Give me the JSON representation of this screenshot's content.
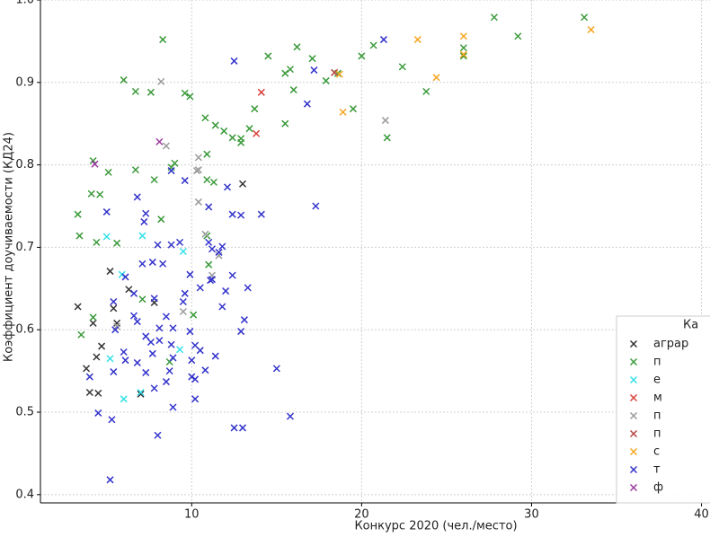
{
  "chart_data": {
    "type": "scatter",
    "xlabel": "Конкурс 2020 (чел./место)",
    "ylabel": "Коэффициент доучиваемости (КД24)",
    "xlim": [
      1.1,
      40.5
    ],
    "ylim": [
      0.39,
      1.0
    ],
    "xticks": [
      10,
      20,
      30,
      40
    ],
    "yticks": [
      0.4,
      0.5,
      0.6,
      0.7,
      0.8,
      0.9,
      {
        "value": 1,
        "label": "1.0"
      }
    ],
    "grid": true,
    "legend_title": "Ка",
    "legend_position": "lower right",
    "series": [
      {
        "name": "аграр",
        "color": "#333333",
        "x": [
          3.3,
          4.2,
          5.2,
          5.4,
          4.7,
          4.4,
          3.8,
          4.0,
          4.5,
          6.3,
          7.0,
          7.8,
          13.0,
          5.6
        ],
        "y": [
          0.628,
          0.608,
          0.671,
          0.626,
          0.58,
          0.567,
          0.553,
          0.524,
          0.523,
          0.649,
          0.522,
          0.633,
          0.777,
          0.608
        ]
      },
      {
        "name": "п",
        "color": "#3a9a3a",
        "x": [
          8.3,
          6.0,
          6.7,
          7.6,
          9.6,
          9.9,
          10.8,
          11.4,
          11.9,
          12.4,
          12.9,
          12.9,
          13.4,
          13.7,
          14.5,
          15.5,
          15.8,
          16.2,
          16.0,
          15.5,
          17.1,
          17.9,
          18.6,
          19.5,
          20.0,
          20.7,
          22.4,
          21.5,
          23.8,
          26.0,
          26.0,
          27.8,
          29.2,
          33.1,
          3.3,
          3.4,
          3.5,
          4.1,
          4.2,
          4.4,
          4.6,
          5.1,
          5.6,
          6.7,
          7.8,
          8.2,
          8.8,
          9.0,
          7.1,
          8.7,
          10.1,
          10.9,
          10.9,
          11.0,
          11.3,
          10.9,
          4.2
        ],
        "y": [
          0.952,
          0.903,
          0.889,
          0.888,
          0.887,
          0.883,
          0.857,
          0.848,
          0.841,
          0.833,
          0.832,
          0.827,
          0.844,
          0.868,
          0.932,
          0.911,
          0.916,
          0.943,
          0.891,
          0.85,
          0.929,
          0.902,
          0.911,
          0.868,
          0.932,
          0.945,
          0.919,
          0.833,
          0.889,
          0.942,
          0.932,
          0.979,
          0.956,
          0.979,
          0.74,
          0.714,
          0.594,
          0.765,
          0.805,
          0.706,
          0.764,
          0.791,
          0.705,
          0.794,
          0.782,
          0.734,
          0.797,
          0.802,
          0.637,
          0.561,
          0.618,
          0.782,
          0.813,
          0.679,
          0.779,
          0.714,
          0.615
        ]
      },
      {
        "name": "е",
        "color": "#33e0e8",
        "x": [
          5.0,
          7.1,
          5.9,
          9.5,
          5.2,
          6.0,
          7.0,
          9.3
        ],
        "y": [
          0.713,
          0.714,
          0.667,
          0.695,
          0.565,
          0.516,
          0.524,
          0.576
        ]
      },
      {
        "name": "м",
        "color": "#d9413a",
        "x": [
          14.1,
          13.8
        ],
        "y": [
          0.888,
          0.838
        ]
      },
      {
        "name": "п",
        "color": "#9a9a9a",
        "x": [
          8.2,
          8.5,
          10.4,
          10.4,
          10.4,
          10.8,
          11.6,
          11.2,
          9.5,
          5.6,
          21.4,
          10.3
        ],
        "y": [
          0.901,
          0.823,
          0.794,
          0.809,
          0.755,
          0.716,
          0.69,
          0.666,
          0.622,
          0.604,
          0.854,
          0.793
        ]
      },
      {
        "name": "п",
        "color": "#b5453f",
        "x": [
          18.4
        ],
        "y": [
          0.912
        ]
      },
      {
        "name": "с",
        "color": "#f5a623",
        "x": [
          18.9,
          18.7,
          23.3,
          24.4,
          26.0,
          26.0,
          33.5
        ],
        "y": [
          0.864,
          0.91,
          0.952,
          0.906,
          0.956,
          0.934,
          0.964
        ]
      },
      {
        "name": "т",
        "color": "#3333cc",
        "x": [
          12.5,
          21.3,
          17.2,
          16.8,
          17.3,
          8.8,
          9.6,
          6.8,
          5.0,
          7.3,
          7.2,
          11.0,
          12.1,
          12.4,
          12.9,
          14.1,
          8.0,
          8.8,
          9.3,
          11.0,
          11.2,
          11.8,
          7.7,
          7.1,
          8.3,
          6.1,
          9.9,
          10.5,
          11.1,
          12.4,
          13.3,
          12.0,
          7.8,
          6.6,
          5.4,
          9.6,
          9.5,
          11.8,
          13.1,
          8.5,
          6.6,
          6.8,
          7.3,
          8.1,
          5.5,
          8.9,
          12.9,
          9.9,
          7.6,
          8.1,
          8.8,
          10.2,
          10.5,
          7.7,
          11.4,
          8.9,
          10.0,
          6.1,
          6.8,
          5.4,
          8.7,
          7.3,
          10.8,
          15.0,
          10.0,
          10.2,
          7.8,
          8.5,
          10.2,
          4.0,
          4.5,
          5.3,
          8.9,
          8.0,
          12.5,
          13.0,
          15.8,
          5.2,
          6.0,
          11.2,
          11.6
        ],
        "y": [
          0.926,
          0.952,
          0.915,
          0.874,
          0.75,
          0.793,
          0.781,
          0.761,
          0.743,
          0.741,
          0.731,
          0.749,
          0.773,
          0.74,
          0.739,
          0.74,
          0.703,
          0.703,
          0.706,
          0.706,
          0.698,
          0.701,
          0.682,
          0.68,
          0.68,
          0.664,
          0.667,
          0.651,
          0.66,
          0.666,
          0.651,
          0.647,
          0.638,
          0.644,
          0.634,
          0.644,
          0.634,
          0.628,
          0.612,
          0.616,
          0.617,
          0.61,
          0.592,
          0.602,
          0.6,
          0.602,
          0.598,
          0.598,
          0.585,
          0.587,
          0.582,
          0.581,
          0.575,
          0.571,
          0.568,
          0.566,
          0.563,
          0.563,
          0.56,
          0.549,
          0.55,
          0.548,
          0.551,
          0.553,
          0.543,
          0.54,
          0.529,
          0.537,
          0.516,
          0.543,
          0.499,
          0.491,
          0.506,
          0.472,
          0.481,
          0.481,
          0.495,
          0.418,
          0.573,
          0.661,
          0.694
        ]
      },
      {
        "name": "ф",
        "color": "#9b3aa0",
        "x": [
          4.3,
          8.1
        ],
        "y": [
          0.801,
          0.828
        ]
      }
    ]
  }
}
